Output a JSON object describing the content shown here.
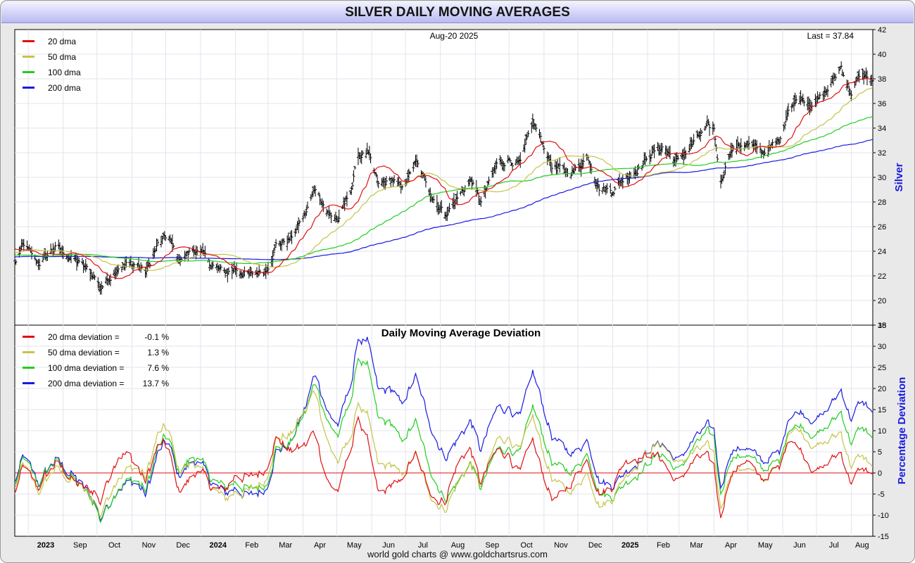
{
  "title": "SILVER DAILY MOVING AVERAGES",
  "footer": "world gold charts @ www.goldchartsrus.com",
  "colors": {
    "ma20": "#e01010",
    "ma50": "#c4c44a",
    "ma100": "#22cc22",
    "ma200": "#1a1ae0",
    "price_bar": "#000000",
    "zero_line": "#e01010",
    "axis_title": "#1a1ae0"
  },
  "chart_data": [
    {
      "type": "line",
      "panel": "price",
      "date_label": "Aug-20  2025",
      "last_label": "Last = 37.84",
      "ylabel": "Silver",
      "ylim": [
        18,
        42
      ],
      "yticks": [
        18,
        20,
        22,
        24,
        26,
        28,
        30,
        32,
        34,
        36,
        38,
        40,
        42
      ],
      "grid": true,
      "legend_position": "top-left",
      "legend": [
        "20 dma",
        "50 dma",
        "100 dma",
        "200 dma"
      ],
      "x_axis_labels": [
        "2023",
        "Sep",
        "Oct",
        "Nov",
        "Dec",
        "2024",
        "Feb",
        "Mar",
        "Apr",
        "May",
        "Jun",
        "Jul",
        "Aug",
        "Sep",
        "Oct",
        "Nov",
        "Dec",
        "2025",
        "Feb",
        "Mar",
        "Apr",
        "May",
        "Jun",
        "Jul",
        "Aug"
      ],
      "x_axis_bold": [
        "2023",
        "2024",
        "2025"
      ],
      "x_range": [
        "2023-07-20",
        "2025-08-20"
      ],
      "price_keypoints": [
        [
          "2023-07-20",
          23.0
        ],
        [
          "2023-07-28",
          24.5
        ],
        [
          "2023-08-10",
          23.0
        ],
        [
          "2023-08-25",
          24.3
        ],
        [
          "2023-09-10",
          23.4
        ],
        [
          "2023-09-29",
          22.0
        ],
        [
          "2023-10-04",
          21.0
        ],
        [
          "2023-10-20",
          22.8
        ],
        [
          "2023-11-05",
          23.0
        ],
        [
          "2023-11-13",
          22.2
        ],
        [
          "2023-11-24",
          24.5
        ],
        [
          "2023-12-03",
          25.3
        ],
        [
          "2023-12-12",
          23.3
        ],
        [
          "2023-12-28",
          24.2
        ],
        [
          "2024-01-10",
          23.0
        ],
        [
          "2024-01-22",
          22.2
        ],
        [
          "2024-02-01",
          22.6
        ],
        [
          "2024-02-14",
          22.0
        ],
        [
          "2024-02-28",
          22.5
        ],
        [
          "2024-03-08",
          24.5
        ],
        [
          "2024-03-21",
          25.0
        ],
        [
          "2024-04-04",
          27.2
        ],
        [
          "2024-04-12",
          29.2
        ],
        [
          "2024-04-24",
          27.0
        ],
        [
          "2024-05-03",
          26.5
        ],
        [
          "2024-05-15",
          29.5
        ],
        [
          "2024-05-20",
          31.8
        ],
        [
          "2024-05-28",
          32.0
        ],
        [
          "2024-06-07",
          29.3
        ],
        [
          "2024-06-20",
          29.8
        ],
        [
          "2024-06-27",
          29.0
        ],
        [
          "2024-07-10",
          31.2
        ],
        [
          "2024-07-25",
          28.5
        ],
        [
          "2024-08-05",
          27.0
        ],
        [
          "2024-08-15",
          28.2
        ],
        [
          "2024-08-28",
          29.8
        ],
        [
          "2024-09-06",
          28.0
        ],
        [
          "2024-09-20",
          31.0
        ],
        [
          "2024-10-01",
          31.5
        ],
        [
          "2024-10-11",
          31.0
        ],
        [
          "2024-10-22",
          34.5
        ],
        [
          "2024-10-30",
          33.0
        ],
        [
          "2024-11-08",
          31.0
        ],
        [
          "2024-11-18",
          30.5
        ],
        [
          "2024-11-28",
          30.5
        ],
        [
          "2024-12-10",
          31.8
        ],
        [
          "2024-12-20",
          29.2
        ],
        [
          "2024-12-31",
          28.9
        ],
        [
          "2025-01-12",
          30.0
        ],
        [
          "2025-01-24",
          30.8
        ],
        [
          "2025-02-05",
          32.0
        ],
        [
          "2025-02-14",
          32.5
        ],
        [
          "2025-02-28",
          31.2
        ],
        [
          "2025-03-10",
          32.4
        ],
        [
          "2025-03-26",
          34.0
        ],
        [
          "2025-04-01",
          33.8
        ],
        [
          "2025-04-07",
          29.6
        ],
        [
          "2025-04-15",
          32.2
        ],
        [
          "2025-04-28",
          32.8
        ],
        [
          "2025-05-15",
          32.0
        ],
        [
          "2025-05-30",
          33.0
        ],
        [
          "2025-06-06",
          35.8
        ],
        [
          "2025-06-18",
          36.5
        ],
        [
          "2025-06-30",
          36.0
        ],
        [
          "2025-07-10",
          37.0
        ],
        [
          "2025-07-23",
          39.0
        ],
        [
          "2025-08-01",
          36.8
        ],
        [
          "2025-08-08",
          38.2
        ],
        [
          "2025-08-14",
          38.3
        ],
        [
          "2025-08-20",
          37.84
        ]
      ],
      "series": [
        {
          "name": "20 dma",
          "key": "ma20",
          "period": 20
        },
        {
          "name": "50 dma",
          "key": "ma50",
          "period": 50
        },
        {
          "name": "100 dma",
          "key": "ma100",
          "period": 100
        },
        {
          "name": "200 dma",
          "key": "ma200",
          "period": 200
        }
      ]
    },
    {
      "type": "line",
      "panel": "deviation",
      "title": "Daily Moving Average Deviation",
      "ylabel": "Percentage Deviation",
      "ylim": [
        -15,
        35
      ],
      "yticks": [
        -15,
        -10,
        -5,
        0,
        5,
        10,
        15,
        20,
        25,
        30,
        35
      ],
      "grid": true,
      "legend_position": "top-left",
      "series": [
        {
          "name": "20 dma deviation =",
          "value": "-0.1 %",
          "key": "ma20"
        },
        {
          "name": "50 dma deviation =",
          "value": "1.3 %",
          "key": "ma50"
        },
        {
          "name": "100 dma deviation =",
          "value": "7.6 %",
          "key": "ma100"
        },
        {
          "name": "200 dma deviation =",
          "value": "13.7 %",
          "key": "ma200"
        }
      ]
    }
  ]
}
